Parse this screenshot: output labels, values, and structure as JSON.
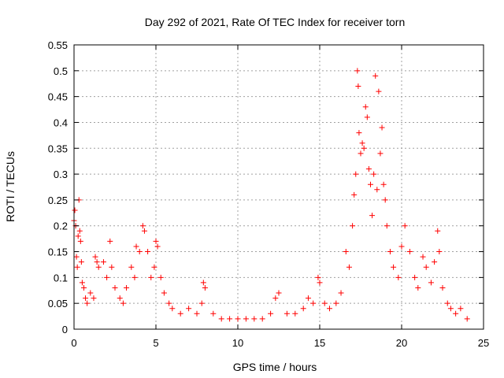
{
  "chart_data": {
    "type": "scatter",
    "title": "Day 292 of 2021, Rate Of TEC Index for receiver torn",
    "xlabel": "GPS time / hours",
    "ylabel": "ROTI / TECUs",
    "xlim": [
      0,
      25
    ],
    "ylim": [
      0,
      0.55
    ],
    "xticks": [
      "0",
      "5",
      "10",
      "15",
      "20",
      "25"
    ],
    "yticks": [
      "0",
      "0.05",
      "0.1",
      "0.15",
      "0.2",
      "0.25",
      "0.3",
      "0.35",
      "0.4",
      "0.45",
      "0.5",
      "0.55"
    ],
    "grid": true,
    "marker": "plus",
    "marker_color": "#ff0000",
    "series": [
      {
        "points": [
          [
            0.0,
            0.21
          ],
          [
            0.05,
            0.23
          ],
          [
            0.1,
            0.2
          ],
          [
            0.15,
            0.14
          ],
          [
            0.2,
            0.12
          ],
          [
            0.25,
            0.18
          ],
          [
            0.3,
            0.25
          ],
          [
            0.35,
            0.19
          ],
          [
            0.4,
            0.17
          ],
          [
            0.45,
            0.13
          ],
          [
            0.5,
            0.09
          ],
          [
            0.6,
            0.08
          ],
          [
            0.7,
            0.06
          ],
          [
            0.8,
            0.05
          ],
          [
            1.0,
            0.07
          ],
          [
            1.2,
            0.06
          ],
          [
            1.3,
            0.14
          ],
          [
            1.4,
            0.13
          ],
          [
            1.5,
            0.12
          ],
          [
            1.8,
            0.13
          ],
          [
            2.0,
            0.1
          ],
          [
            2.2,
            0.17
          ],
          [
            2.3,
            0.12
          ],
          [
            2.5,
            0.08
          ],
          [
            2.8,
            0.06
          ],
          [
            3.0,
            0.05
          ],
          [
            3.2,
            0.08
          ],
          [
            3.5,
            0.12
          ],
          [
            3.7,
            0.1
          ],
          [
            3.8,
            0.16
          ],
          [
            4.0,
            0.15
          ],
          [
            4.2,
            0.2
          ],
          [
            4.3,
            0.19
          ],
          [
            4.5,
            0.15
          ],
          [
            4.7,
            0.1
          ],
          [
            4.9,
            0.12
          ],
          [
            5.0,
            0.17
          ],
          [
            5.1,
            0.16
          ],
          [
            5.3,
            0.1
          ],
          [
            5.5,
            0.07
          ],
          [
            5.8,
            0.05
          ],
          [
            6.0,
            0.04
          ],
          [
            6.5,
            0.03
          ],
          [
            7.0,
            0.04
          ],
          [
            7.5,
            0.03
          ],
          [
            7.8,
            0.05
          ],
          [
            7.9,
            0.09
          ],
          [
            8.0,
            0.08
          ],
          [
            8.5,
            0.03
          ],
          [
            9.0,
            0.02
          ],
          [
            9.5,
            0.02
          ],
          [
            10.0,
            0.02
          ],
          [
            10.5,
            0.02
          ],
          [
            11.0,
            0.02
          ],
          [
            11.5,
            0.02
          ],
          [
            12.0,
            0.03
          ],
          [
            12.3,
            0.06
          ],
          [
            12.5,
            0.07
          ],
          [
            13.0,
            0.03
          ],
          [
            13.5,
            0.03
          ],
          [
            14.0,
            0.04
          ],
          [
            14.3,
            0.06
          ],
          [
            14.6,
            0.05
          ],
          [
            14.9,
            0.1
          ],
          [
            15.0,
            0.09
          ],
          [
            15.3,
            0.05
          ],
          [
            15.6,
            0.04
          ],
          [
            16.0,
            0.05
          ],
          [
            16.3,
            0.07
          ],
          [
            16.6,
            0.15
          ],
          [
            16.8,
            0.12
          ],
          [
            17.0,
            0.2
          ],
          [
            17.1,
            0.26
          ],
          [
            17.2,
            0.3
          ],
          [
            17.3,
            0.5
          ],
          [
            17.35,
            0.47
          ],
          [
            17.4,
            0.38
          ],
          [
            17.5,
            0.34
          ],
          [
            17.6,
            0.36
          ],
          [
            17.7,
            0.35
          ],
          [
            17.8,
            0.43
          ],
          [
            17.9,
            0.41
          ],
          [
            18.0,
            0.31
          ],
          [
            18.1,
            0.28
          ],
          [
            18.2,
            0.22
          ],
          [
            18.3,
            0.3
          ],
          [
            18.4,
            0.49
          ],
          [
            18.5,
            0.27
          ],
          [
            18.6,
            0.46
          ],
          [
            18.7,
            0.34
          ],
          [
            18.8,
            0.39
          ],
          [
            18.9,
            0.28
          ],
          [
            19.0,
            0.25
          ],
          [
            19.1,
            0.2
          ],
          [
            19.3,
            0.15
          ],
          [
            19.5,
            0.12
          ],
          [
            19.8,
            0.1
          ],
          [
            20.0,
            0.16
          ],
          [
            20.2,
            0.2
          ],
          [
            20.5,
            0.15
          ],
          [
            20.8,
            0.1
          ],
          [
            21.0,
            0.08
          ],
          [
            21.3,
            0.14
          ],
          [
            21.5,
            0.12
          ],
          [
            21.8,
            0.09
          ],
          [
            22.0,
            0.13
          ],
          [
            22.2,
            0.19
          ],
          [
            22.3,
            0.15
          ],
          [
            22.5,
            0.08
          ],
          [
            22.8,
            0.05
          ],
          [
            23.0,
            0.04
          ],
          [
            23.3,
            0.03
          ],
          [
            23.6,
            0.04
          ],
          [
            24.0,
            0.02
          ]
        ]
      }
    ]
  }
}
